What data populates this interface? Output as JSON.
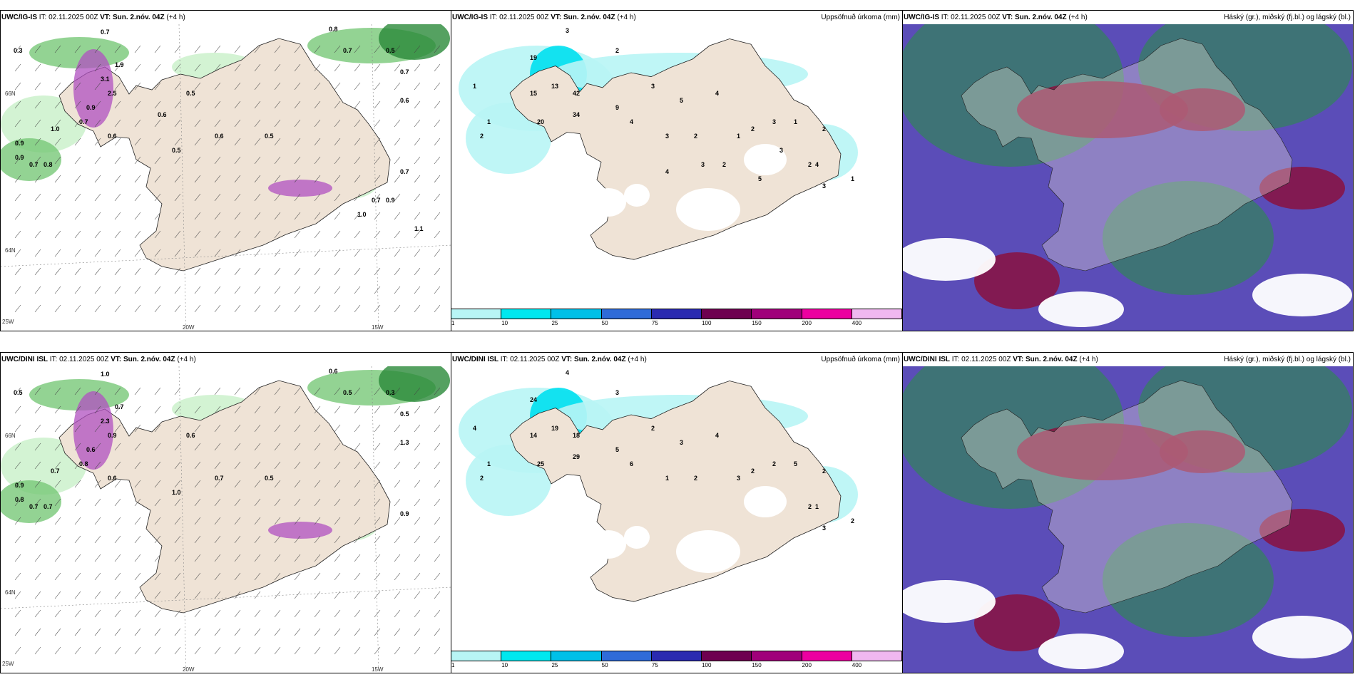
{
  "rows": [
    {
      "wind_panel": {
        "model": "UWC/IG-IS",
        "it": "IT: 02.11.2025 00Z",
        "vt": "VT: Sun. 2.nóv. 04Z",
        "lead": "(+4 h)"
      },
      "precip_panel": {
        "model": "UWC/IG-IS",
        "it": "IT: 02.11.2025 00Z",
        "vt": "VT: Sun. 2.nóv. 04Z",
        "lead": "(+4 h)",
        "right_title": "Uppsöfnuð úrkoma (mm)"
      },
      "cloud_panel": {
        "model": "UWC/IG-IS",
        "it": "IT: 02.11.2025 00Z",
        "vt": "VT: Sun. 2.nóv. 04Z",
        "lead": "(+4 h)",
        "right_title": "Háský (gr.), miðský (fj.bl.) og lágský (bl.)"
      },
      "wind_values": [
        "0.3",
        "0.7",
        "0.8",
        "0.7",
        "0.5",
        "0.7",
        "0.6",
        "0.9",
        "1.0",
        "0.9",
        "0.7",
        "0.6",
        "3.1",
        "2.5",
        "1.9",
        "0.5",
        "0.6",
        "0.5",
        "0.9",
        "0.7",
        "0.8",
        "0.5",
        "0.7",
        "0.9",
        "0.7",
        "1.1",
        "1.0",
        "0.6"
      ],
      "precip_values": [
        "3",
        "2",
        "1",
        "19",
        "20",
        "34",
        "42",
        "13",
        "15",
        "2",
        "1",
        "9",
        "4",
        "3",
        "5",
        "4",
        "2",
        "3",
        "2",
        "1",
        "3",
        "1",
        "2",
        "4",
        "3",
        "1",
        "2",
        "3",
        "5",
        "2",
        "3",
        "4"
      ]
    },
    {
      "wind_panel": {
        "model": "UWC/DINI ISL",
        "it": "IT: 02.11.2025 00Z",
        "vt": "VT: Sun. 2.nóv. 04Z",
        "lead": "(+4 h)"
      },
      "precip_panel": {
        "model": "UWC/DINI ISL",
        "it": "IT: 02.11.2025 00Z",
        "vt": "VT: Sun. 2.nóv. 04Z",
        "lead": "(+4 h)",
        "right_title": "Uppsöfnuð úrkoma (mm)"
      },
      "cloud_panel": {
        "model": "UWC/DINI ISL",
        "it": "IT: 02.11.2025 00Z",
        "vt": "VT: Sun. 2.nóv. 04Z",
        "lead": "(+4 h)",
        "right_title": "Háský (gr.), miðský (fj.bl.) og lágský (bl.)"
      },
      "wind_values": [
        "0.5",
        "1.0",
        "0.6",
        "0.5",
        "0.3",
        "0.5",
        "1.3",
        "0.9",
        "0.7",
        "0.6",
        "0.8",
        "0.6",
        "2.3",
        "0.9",
        "0.7",
        "0.6",
        "0.7",
        "0.5",
        "0.8",
        "0.7",
        "0.7",
        "1.0",
        "0.9"
      ],
      "precip_values": [
        "4",
        "3",
        "4",
        "24",
        "25",
        "29",
        "18",
        "19",
        "14",
        "2",
        "1",
        "5",
        "6",
        "2",
        "3",
        "4",
        "2",
        "1",
        "2",
        "3",
        "2",
        "5",
        "2",
        "1",
        "3",
        "2",
        "2"
      ]
    }
  ],
  "grid_labels": {
    "lon_20": "20W",
    "lon_15": "15W",
    "lon_25": "25W",
    "lat_66": "66N",
    "lat_64": "64N"
  },
  "colorbar": {
    "ticks": [
      "1",
      "10",
      "25",
      "50",
      "75",
      "100",
      "150",
      "200",
      "400"
    ],
    "colors": [
      "#b8f5f5",
      "#00e8ef",
      "#00c0e8",
      "#2f6bd8",
      "#2a2ab0",
      "#6e0050",
      "#a0007a",
      "#ec00a0",
      "#f0b8f0"
    ]
  },
  "colors": {
    "land": "#efe3d6",
    "ocean": "#ffffff",
    "coast": "#222222",
    "green_light": "#c8f0c8",
    "green_mid": "#78c878",
    "green_dark": "#2a8a3a",
    "purple": "#b050c0",
    "cyan": "#00e0ef",
    "cloud_purple": "#5b4db8",
    "cloud_maroon": "#8a1240",
    "cloud_green": "#3a7a6a"
  }
}
